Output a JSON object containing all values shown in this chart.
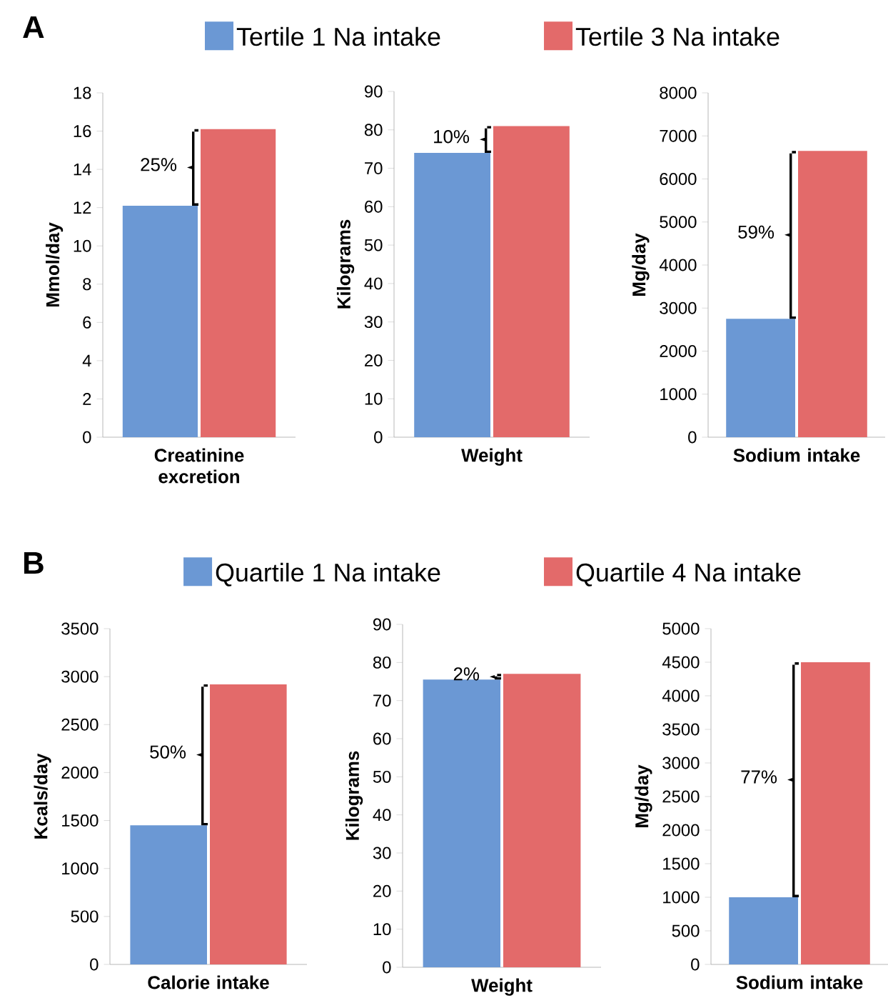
{
  "chart_data": [
    {
      "type": "bar",
      "title": "A",
      "ylabel": "Mmol/day",
      "categories": [
        "Creatinine excretion"
      ],
      "ylim": [
        0,
        18
      ],
      "yticks": [
        0,
        2,
        4,
        6,
        8,
        10,
        12,
        14,
        16,
        18
      ],
      "legend": "top",
      "annotations": [
        "25%"
      ],
      "series": [
        {
          "name": "Tertile 1 Na intake",
          "color": "#6b98d4",
          "values": [
            12.1
          ]
        },
        {
          "name": "Tertile 3 Na intake",
          "color": "#e36a6a",
          "values": [
            16.1
          ]
        }
      ]
    },
    {
      "type": "bar",
      "ylabel": "Kilograms",
      "categories": [
        "Weight"
      ],
      "ylim": [
        0,
        90
      ],
      "yticks": [
        0,
        10,
        20,
        30,
        40,
        50,
        60,
        70,
        80,
        90
      ],
      "annotations": [
        "10%"
      ],
      "series": [
        {
          "color": "#6b98d4",
          "values": [
            74
          ]
        },
        {
          "color": "#e36a6a",
          "values": [
            81
          ]
        }
      ]
    },
    {
      "type": "bar",
      "ylabel": "Mg/day",
      "categories": [
        "Sodium intake"
      ],
      "ylim": [
        0,
        8000
      ],
      "yticks": [
        0,
        1000,
        2000,
        3000,
        4000,
        5000,
        6000,
        7000,
        8000
      ],
      "annotations": [
        "59%"
      ],
      "series": [
        {
          "color": "#6b98d4",
          "values": [
            2750
          ]
        },
        {
          "color": "#e36a6a",
          "values": [
            6650
          ]
        }
      ]
    },
    {
      "type": "bar",
      "title": "B",
      "ylabel": "Kcals/day",
      "categories": [
        "Calorie intake"
      ],
      "ylim": [
        0,
        3500
      ],
      "yticks": [
        0,
        500,
        1000,
        1500,
        2000,
        2500,
        3000,
        3500
      ],
      "legend": "top",
      "annotations": [
        "50%"
      ],
      "series": [
        {
          "name": "Quartile 1 Na intake",
          "color": "#6b98d4",
          "values": [
            1450
          ]
        },
        {
          "name": "Quartile 4 Na intake",
          "color": "#e36a6a",
          "values": [
            2920
          ]
        }
      ]
    },
    {
      "type": "bar",
      "ylabel": "Kilograms",
      "categories": [
        "Weight"
      ],
      "ylim": [
        0,
        90
      ],
      "yticks": [
        0,
        10,
        20,
        30,
        40,
        50,
        60,
        70,
        80,
        90
      ],
      "annotations": [
        "2%"
      ],
      "series": [
        {
          "color": "#6b98d4",
          "values": [
            75.5
          ]
        },
        {
          "color": "#e36a6a",
          "values": [
            77
          ]
        }
      ]
    },
    {
      "type": "bar",
      "ylabel": "Mg/day",
      "categories": [
        "Sodium intake"
      ],
      "ylim": [
        0,
        5000
      ],
      "yticks": [
        0,
        500,
        1000,
        1500,
        2000,
        2500,
        3000,
        3500,
        4000,
        4500,
        5000
      ],
      "annotations": [
        "77%"
      ],
      "series": [
        {
          "color": "#6b98d4",
          "values": [
            1000
          ]
        },
        {
          "color": "#e36a6a",
          "values": [
            4500
          ]
        }
      ]
    }
  ]
}
